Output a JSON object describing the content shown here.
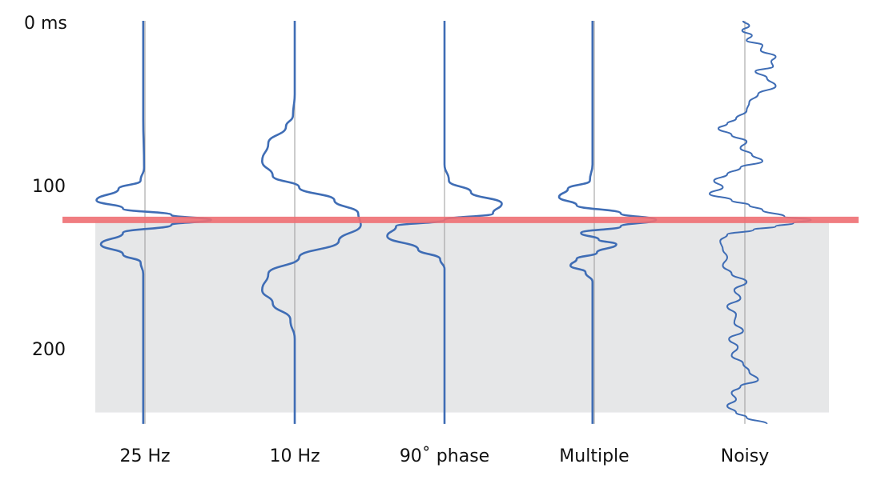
{
  "chart_data": {
    "type": "line",
    "title": "",
    "xlabel": "",
    "ylabel": "",
    "y_unit": "ms",
    "ylim": [
      0,
      250
    ],
    "y_inverted": true,
    "y_ticks": [
      {
        "value": 0,
        "label": "0 ms"
      },
      {
        "value": 100,
        "label": "100"
      },
      {
        "value": 200,
        "label": "200"
      }
    ],
    "grid": false,
    "legend": "none",
    "highlight_time": 122,
    "shaded_region": [
      122,
      240
    ],
    "colors": {
      "trace": "#3f6db5",
      "baseline": "#9a9a9a",
      "highlight": "#ee6f73",
      "shade": "#e6e7e8"
    },
    "series": [
      {
        "label": "25 Hz",
        "points": [
          [
            -0.02,
            0
          ],
          [
            -0.02,
            60
          ],
          [
            -0.01,
            90
          ],
          [
            -0.05,
            98
          ],
          [
            -0.3,
            103
          ],
          [
            -0.55,
            110
          ],
          [
            -0.25,
            115
          ],
          [
            0.3,
            119
          ],
          [
            0.75,
            122
          ],
          [
            0.3,
            125
          ],
          [
            -0.25,
            130
          ],
          [
            -0.5,
            137
          ],
          [
            -0.25,
            143
          ],
          [
            -0.05,
            148
          ],
          [
            -0.02,
            155
          ],
          [
            -0.02,
            247
          ]
        ]
      },
      {
        "label": "10 Hz",
        "points": [
          [
            0,
            0
          ],
          [
            0,
            45
          ],
          [
            -0.02,
            58
          ],
          [
            -0.1,
            65
          ],
          [
            -0.3,
            75
          ],
          [
            -0.37,
            86
          ],
          [
            -0.25,
            95
          ],
          [
            0.05,
            102
          ],
          [
            0.45,
            110
          ],
          [
            0.72,
            118
          ],
          [
            0.75,
            125
          ],
          [
            0.5,
            135
          ],
          [
            0.05,
            145
          ],
          [
            -0.3,
            155
          ],
          [
            -0.37,
            165
          ],
          [
            -0.25,
            173
          ],
          [
            -0.05,
            183
          ],
          [
            0,
            195
          ],
          [
            0,
            247
          ]
        ]
      },
      {
        "label": "90˚ phase",
        "points": [
          [
            0,
            0
          ],
          [
            0,
            88
          ],
          [
            0.05,
            98
          ],
          [
            0.3,
            105
          ],
          [
            0.65,
            112
          ],
          [
            0.55,
            118
          ],
          [
            0,
            122
          ],
          [
            -0.55,
            126
          ],
          [
            -0.65,
            132
          ],
          [
            -0.3,
            140
          ],
          [
            -0.05,
            146
          ],
          [
            0,
            152
          ],
          [
            0,
            247
          ]
        ]
      },
      {
        "label": "Multiple",
        "points": [
          [
            -0.02,
            0
          ],
          [
            -0.02,
            88
          ],
          [
            -0.05,
            98
          ],
          [
            -0.3,
            103
          ],
          [
            -0.4,
            108
          ],
          [
            -0.2,
            113
          ],
          [
            0.3,
            118
          ],
          [
            0.7,
            122
          ],
          [
            0.3,
            126
          ],
          [
            -0.15,
            130
          ],
          [
            0.05,
            134
          ],
          [
            0.25,
            137
          ],
          [
            0.03,
            142
          ],
          [
            -0.2,
            146
          ],
          [
            -0.27,
            150
          ],
          [
            -0.1,
            154
          ],
          [
            -0.02,
            160
          ],
          [
            -0.02,
            247
          ]
        ]
      },
      {
        "label": "Noisy",
        "points": [
          [
            -0.02,
            0
          ],
          [
            0.05,
            3
          ],
          [
            -0.03,
            6
          ],
          [
            0.08,
            9
          ],
          [
            0.02,
            12
          ],
          [
            0.2,
            15
          ],
          [
            0.18,
            18
          ],
          [
            0.35,
            22
          ],
          [
            0.3,
            25
          ],
          [
            0.32,
            28
          ],
          [
            0.12,
            31
          ],
          [
            0.25,
            35
          ],
          [
            0.35,
            40
          ],
          [
            0.15,
            45
          ],
          [
            0.05,
            50
          ],
          [
            0.02,
            55
          ],
          [
            -0.1,
            60
          ],
          [
            -0.2,
            63
          ],
          [
            -0.3,
            66
          ],
          [
            -0.15,
            70
          ],
          [
            0.02,
            74
          ],
          [
            -0.05,
            78
          ],
          [
            0.08,
            82
          ],
          [
            0.2,
            86
          ],
          [
            -0.05,
            90
          ],
          [
            -0.2,
            94
          ],
          [
            -0.35,
            98
          ],
          [
            -0.25,
            102
          ],
          [
            -0.4,
            106
          ],
          [
            -0.15,
            110
          ],
          [
            0.05,
            113
          ],
          [
            0.2,
            116
          ],
          [
            0.45,
            120
          ],
          [
            0.75,
            122
          ],
          [
            0.55,
            124
          ],
          [
            0.35,
            126
          ],
          [
            0.1,
            128
          ],
          [
            -0.2,
            131
          ],
          [
            -0.28,
            135
          ],
          [
            -0.25,
            140
          ],
          [
            -0.2,
            145
          ],
          [
            -0.25,
            150
          ],
          [
            -0.15,
            155
          ],
          [
            0.02,
            160
          ],
          [
            -0.12,
            165
          ],
          [
            -0.05,
            170
          ],
          [
            -0.2,
            175
          ],
          [
            -0.1,
            180
          ],
          [
            -0.12,
            185
          ],
          [
            -0.02,
            190
          ],
          [
            -0.18,
            195
          ],
          [
            -0.08,
            200
          ],
          [
            -0.15,
            205
          ],
          [
            -0.02,
            210
          ],
          [
            0.05,
            215
          ],
          [
            0.15,
            220
          ],
          [
            -0.05,
            224
          ],
          [
            -0.15,
            228
          ],
          [
            -0.1,
            232
          ],
          [
            -0.2,
            236
          ],
          [
            -0.1,
            240
          ],
          [
            0.02,
            243
          ],
          [
            0.25,
            247
          ]
        ]
      }
    ]
  }
}
